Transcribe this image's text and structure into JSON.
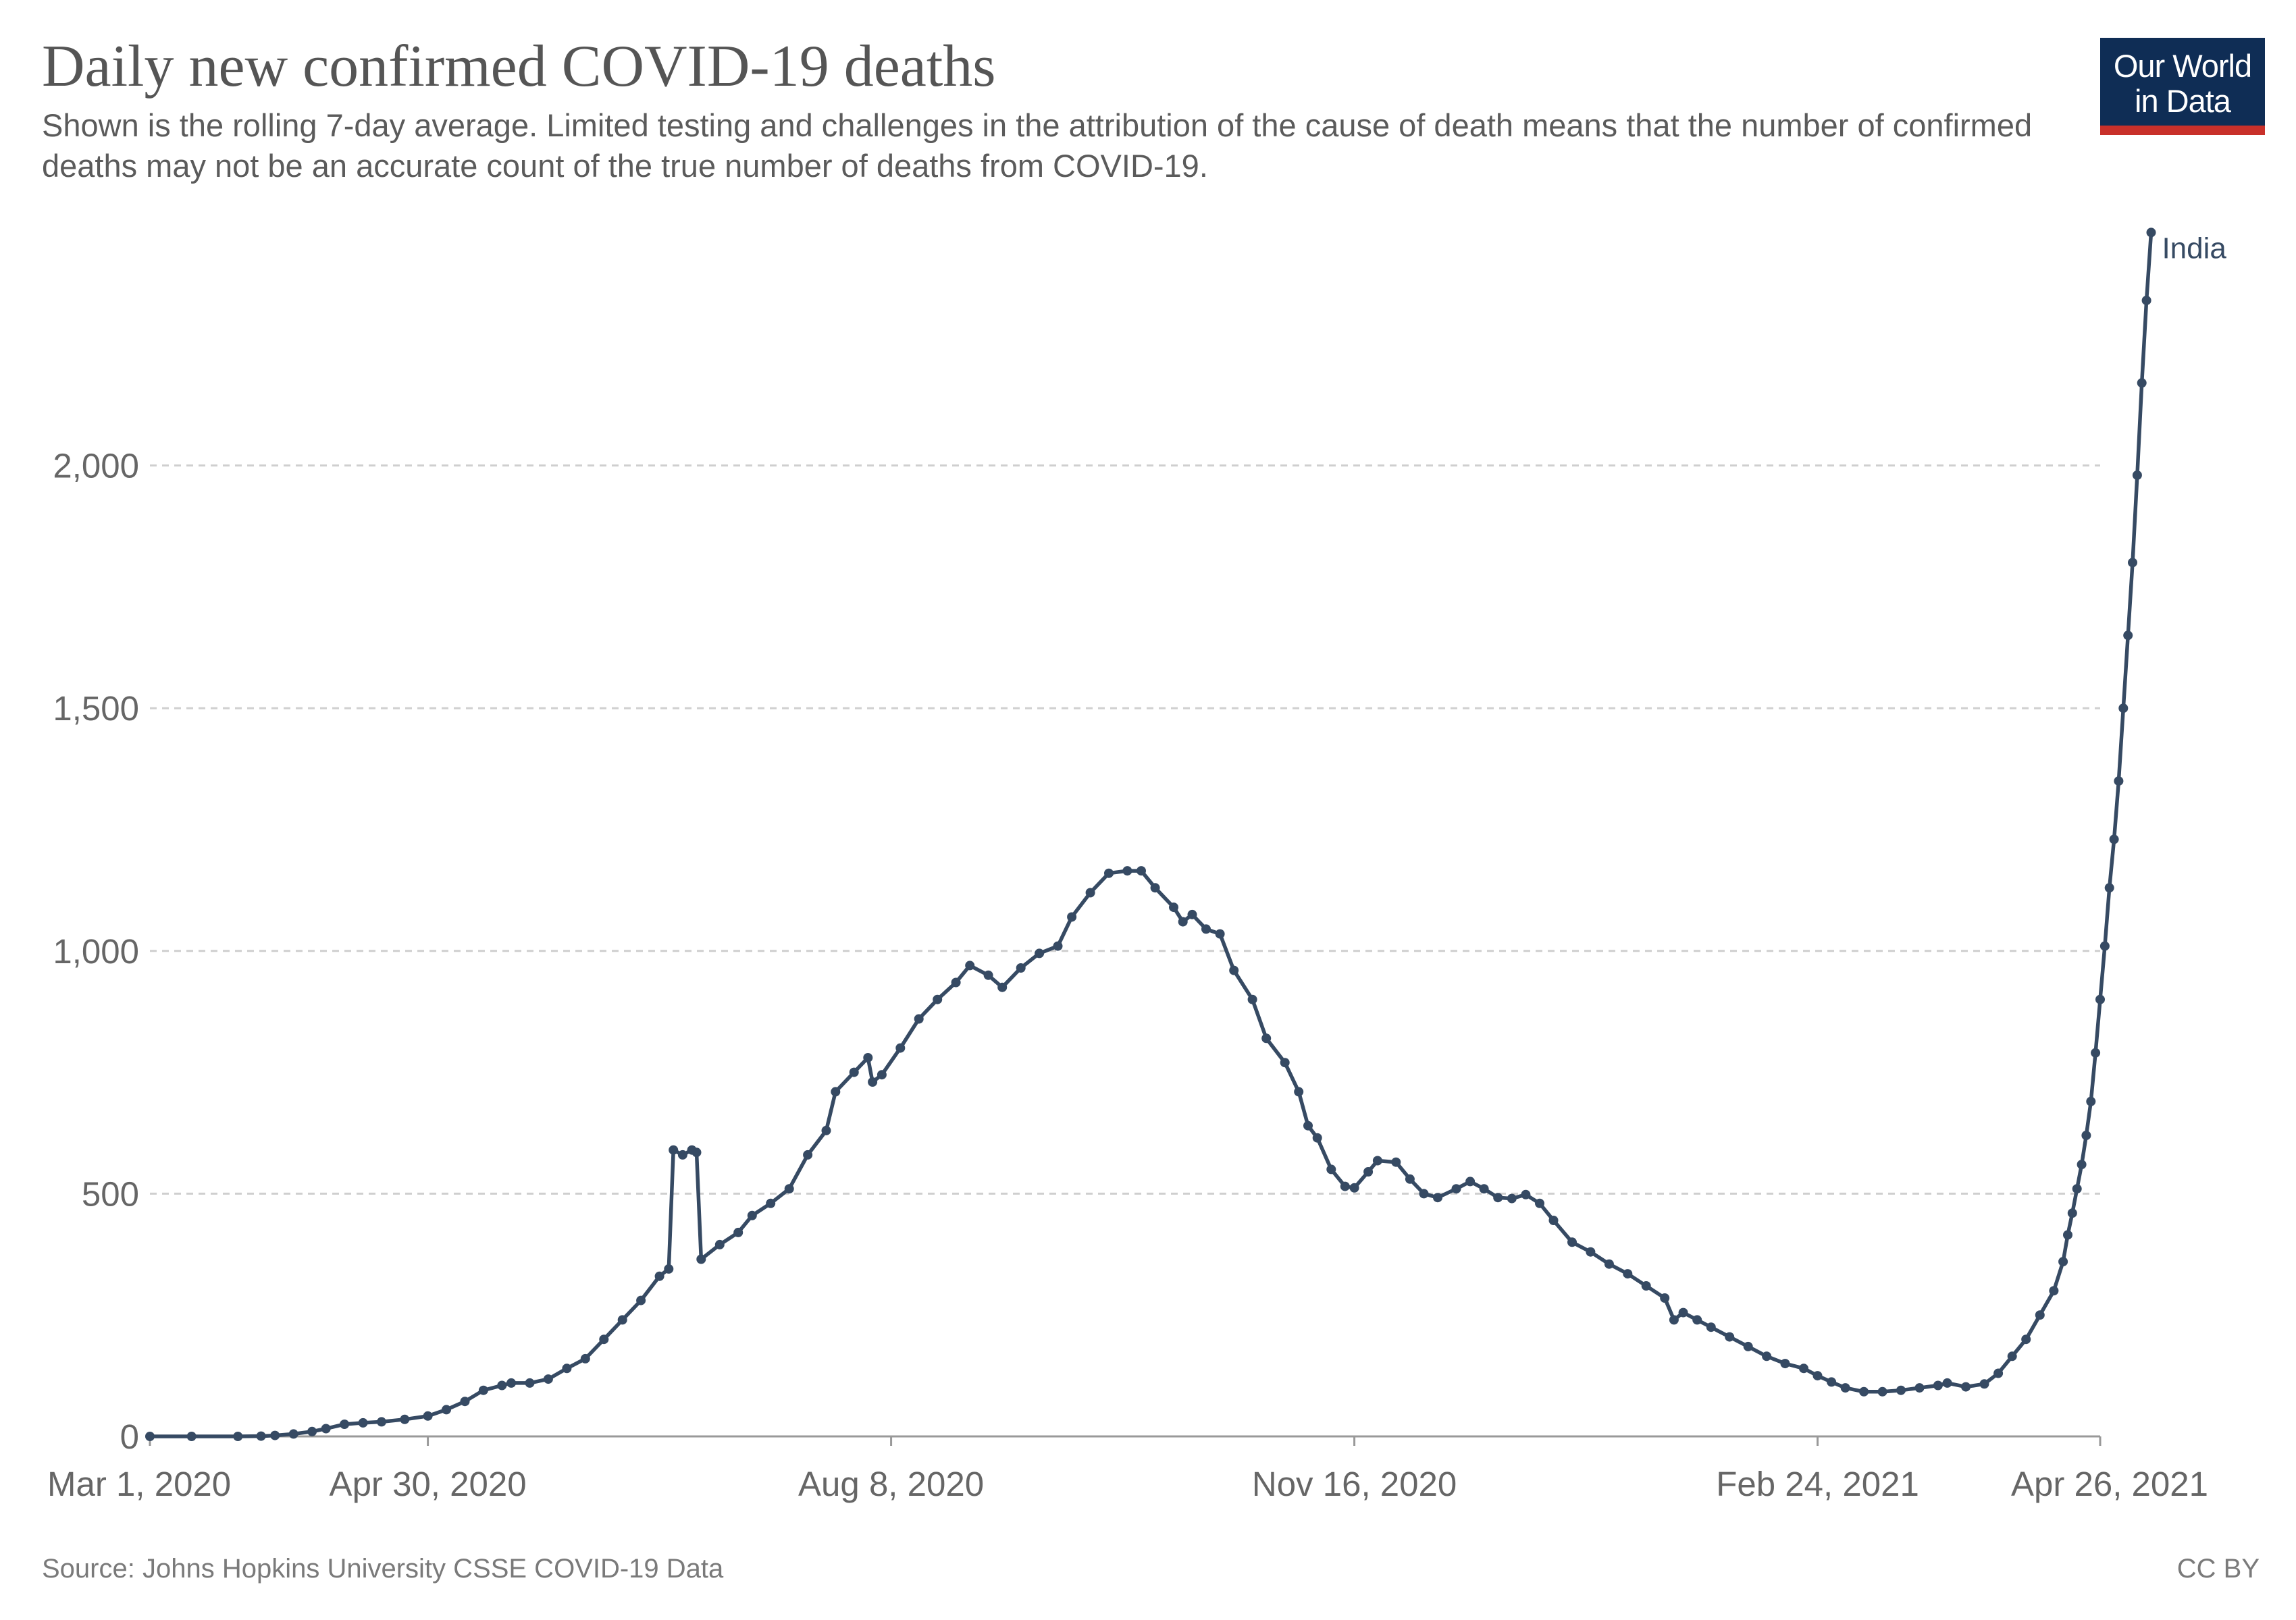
{
  "header": {
    "title": "Daily new confirmed COVID-19 deaths",
    "subtitle": "Shown is the rolling 7-day average. Limited testing and challenges in the attribution of the cause of death means that the number of confirmed deaths may not be an accurate count of the true number of deaths from COVID-19."
  },
  "logo": {
    "line1": "Our World",
    "line2": "in Data",
    "color": "#0f2d55",
    "accent": "#c8302a"
  },
  "footer": {
    "source": "Source: Johns Hopkins University CSSE COVID-19 Data",
    "license": "CC BY"
  },
  "chart_data": {
    "type": "line",
    "title": "Daily new confirmed COVID-19 deaths",
    "xlabel": "",
    "ylabel": "",
    "x_range": [
      "2020-03-01",
      "2021-04-26"
    ],
    "ylim": [
      0,
      2500
    ],
    "y_ticks": [
      {
        "value": 0,
        "label": "0"
      },
      {
        "value": 500,
        "label": "500"
      },
      {
        "value": 1000,
        "label": "1,000"
      },
      {
        "value": 1500,
        "label": "1,500"
      },
      {
        "value": 2000,
        "label": "2,000"
      }
    ],
    "x_ticks": [
      {
        "date": "2020-03-01",
        "label": "Mar 1, 2020"
      },
      {
        "date": "2020-04-30",
        "label": "Apr 30, 2020"
      },
      {
        "date": "2020-08-08",
        "label": "Aug 8, 2020"
      },
      {
        "date": "2020-11-16",
        "label": "Nov 16, 2020"
      },
      {
        "date": "2021-02-24",
        "label": "Feb 24, 2021"
      },
      {
        "date": "2021-04-26",
        "label": "Apr 26, 2021"
      }
    ],
    "grid": "horizontal-dashed",
    "legend": "inline-end-label",
    "series": [
      {
        "name": "India",
        "color": "#364a63",
        "points": [
          [
            "2020-03-01",
            0
          ],
          [
            "2020-03-10",
            0
          ],
          [
            "2020-03-20",
            0
          ],
          [
            "2020-03-25",
            0.5
          ],
          [
            "2020-03-28",
            2
          ],
          [
            "2020-04-01",
            5
          ],
          [
            "2020-04-05",
            10
          ],
          [
            "2020-04-08",
            16
          ],
          [
            "2020-04-12",
            25
          ],
          [
            "2020-04-16",
            28
          ],
          [
            "2020-04-20",
            30
          ],
          [
            "2020-04-25",
            35
          ],
          [
            "2020-04-30",
            42
          ],
          [
            "2020-05-04",
            55
          ],
          [
            "2020-05-08",
            72
          ],
          [
            "2020-05-12",
            95
          ],
          [
            "2020-05-16",
            105
          ],
          [
            "2020-05-18",
            110
          ],
          [
            "2020-05-22",
            110
          ],
          [
            "2020-05-26",
            118
          ],
          [
            "2020-05-30",
            140
          ],
          [
            "2020-06-03",
            160
          ],
          [
            "2020-06-07",
            200
          ],
          [
            "2020-06-11",
            240
          ],
          [
            "2020-06-15",
            280
          ],
          [
            "2020-06-19",
            330
          ],
          [
            "2020-06-21",
            345
          ],
          [
            "2020-06-22",
            590
          ],
          [
            "2020-06-24",
            580
          ],
          [
            "2020-06-26",
            590
          ],
          [
            "2020-06-27",
            585
          ],
          [
            "2020-06-28",
            365
          ],
          [
            "2020-07-02",
            395
          ],
          [
            "2020-07-06",
            420
          ],
          [
            "2020-07-09",
            455
          ],
          [
            "2020-07-13",
            480
          ],
          [
            "2020-07-17",
            510
          ],
          [
            "2020-07-21",
            580
          ],
          [
            "2020-07-25",
            630
          ],
          [
            "2020-07-27",
            710
          ],
          [
            "2020-07-31",
            750
          ],
          [
            "2020-08-03",
            780
          ],
          [
            "2020-08-04",
            730
          ],
          [
            "2020-08-06",
            745
          ],
          [
            "2020-08-10",
            800
          ],
          [
            "2020-08-14",
            860
          ],
          [
            "2020-08-18",
            900
          ],
          [
            "2020-08-22",
            935
          ],
          [
            "2020-08-25",
            970
          ],
          [
            "2020-08-29",
            950
          ],
          [
            "2020-09-01",
            925
          ],
          [
            "2020-09-05",
            965
          ],
          [
            "2020-09-09",
            995
          ],
          [
            "2020-09-13",
            1010
          ],
          [
            "2020-09-16",
            1070
          ],
          [
            "2020-09-20",
            1120
          ],
          [
            "2020-09-24",
            1160
          ],
          [
            "2020-09-28",
            1165
          ],
          [
            "2020-10-01",
            1165
          ],
          [
            "2020-10-04",
            1130
          ],
          [
            "2020-10-08",
            1090
          ],
          [
            "2020-10-10",
            1060
          ],
          [
            "2020-10-12",
            1075
          ],
          [
            "2020-10-15",
            1045
          ],
          [
            "2020-10-18",
            1035
          ],
          [
            "2020-10-21",
            960
          ],
          [
            "2020-10-25",
            900
          ],
          [
            "2020-10-28",
            820
          ],
          [
            "2020-11-01",
            770
          ],
          [
            "2020-11-04",
            710
          ],
          [
            "2020-11-06",
            640
          ],
          [
            "2020-11-08",
            615
          ],
          [
            "2020-11-11",
            550
          ],
          [
            "2020-11-14",
            515
          ],
          [
            "2020-11-16",
            512
          ],
          [
            "2020-11-19",
            545
          ],
          [
            "2020-11-21",
            568
          ],
          [
            "2020-11-25",
            565
          ],
          [
            "2020-11-28",
            530
          ],
          [
            "2020-12-01",
            500
          ],
          [
            "2020-12-04",
            492
          ],
          [
            "2020-12-08",
            510
          ],
          [
            "2020-12-11",
            525
          ],
          [
            "2020-12-14",
            510
          ],
          [
            "2020-12-17",
            492
          ],
          [
            "2020-12-20",
            490
          ],
          [
            "2020-12-23",
            498
          ],
          [
            "2020-12-26",
            480
          ],
          [
            "2020-12-29",
            445
          ],
          [
            "2021-01-02",
            400
          ],
          [
            "2021-01-06",
            380
          ],
          [
            "2021-01-10",
            355
          ],
          [
            "2021-01-14",
            335
          ],
          [
            "2021-01-18",
            310
          ],
          [
            "2021-01-22",
            285
          ],
          [
            "2021-01-24",
            240
          ],
          [
            "2021-01-26",
            255
          ],
          [
            "2021-01-29",
            240
          ],
          [
            "2021-02-01",
            225
          ],
          [
            "2021-02-05",
            205
          ],
          [
            "2021-02-09",
            185
          ],
          [
            "2021-02-13",
            165
          ],
          [
            "2021-02-17",
            150
          ],
          [
            "2021-02-21",
            140
          ],
          [
            "2021-02-24",
            125
          ],
          [
            "2021-02-27",
            112
          ],
          [
            "2021-03-02",
            100
          ],
          [
            "2021-03-06",
            92
          ],
          [
            "2021-03-10",
            92
          ],
          [
            "2021-03-14",
            95
          ],
          [
            "2021-03-18",
            100
          ],
          [
            "2021-03-22",
            105
          ],
          [
            "2021-03-24",
            110
          ],
          [
            "2021-03-28",
            102
          ],
          [
            "2021-04-01",
            108
          ],
          [
            "2021-04-04",
            130
          ],
          [
            "2021-04-07",
            165
          ],
          [
            "2021-04-10",
            200
          ],
          [
            "2021-04-13",
            250
          ],
          [
            "2021-04-16",
            300
          ],
          [
            "2021-04-18",
            360
          ],
          [
            "2021-04-19",
            415
          ],
          [
            "2021-04-20",
            460
          ],
          [
            "2021-04-21",
            510
          ],
          [
            "2021-04-22",
            560
          ],
          [
            "2021-04-23",
            620
          ],
          [
            "2021-04-24",
            690
          ],
          [
            "2021-04-25",
            790
          ],
          [
            "2021-04-26",
            900
          ],
          [
            "2021-04-27",
            1010
          ],
          [
            "2021-04-28",
            1130
          ],
          [
            "2021-04-29",
            1230
          ],
          [
            "2021-04-30",
            1350
          ],
          [
            "2021-05-01",
            1500
          ],
          [
            "2021-05-02",
            1650
          ],
          [
            "2021-05-03",
            1800
          ],
          [
            "2021-05-04",
            1980
          ],
          [
            "2021-05-05",
            2170
          ],
          [
            "2021-05-06",
            2340
          ],
          [
            "2021-05-07",
            2480
          ]
        ]
      }
    ]
  }
}
